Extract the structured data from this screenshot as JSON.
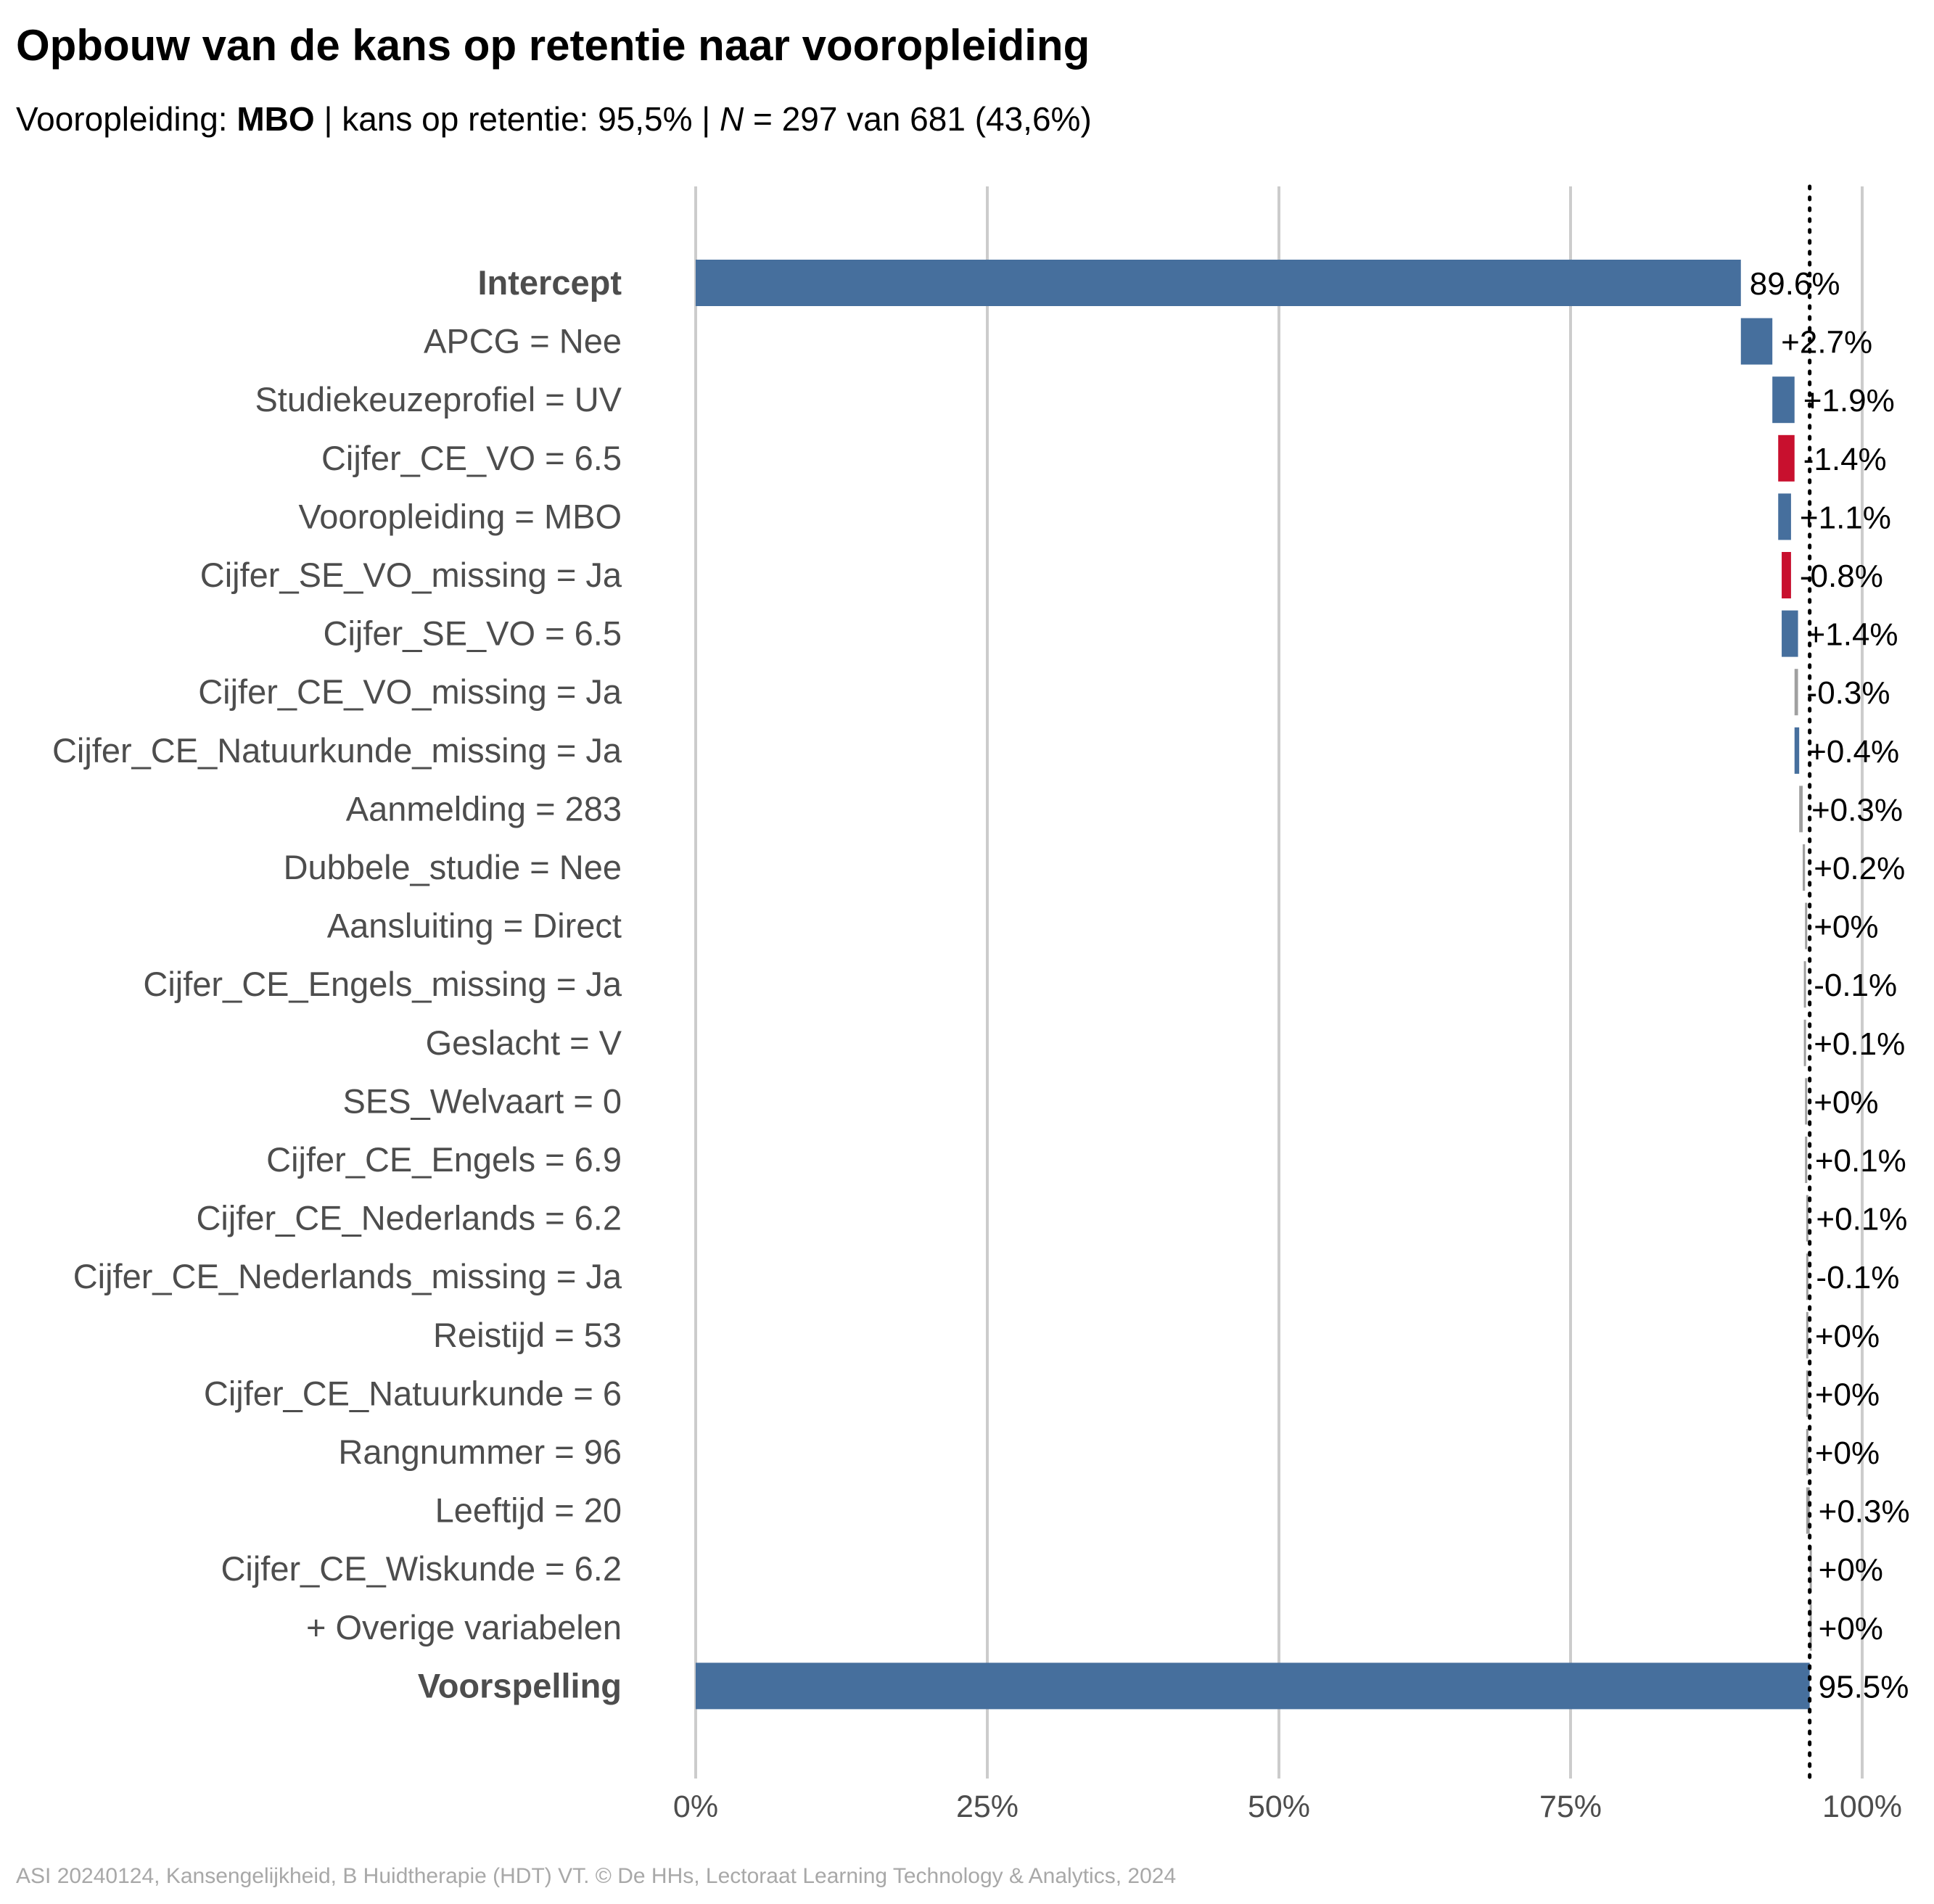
{
  "title": "Opbouw van de kans op retentie naar vooropleiding",
  "subtitle": {
    "prefix": "Vooropleiding: ",
    "group": "MBO",
    "middle": " | kans op retentie: 95,5% | ",
    "n_symbol": "N",
    "suffix": " = 297 van 681 (43,6%)"
  },
  "caption": "ASI 20240124, Kansengelijkheid, B Huidtherapie (HDT) VT. © De HHs, Lectoraat Learning Technology & Analytics, 2024",
  "colors": {
    "positive": "#466f9d",
    "negative": "#c8102e",
    "neutral": "#a0a0a0",
    "grid": "#cccccc"
  },
  "chart_data": {
    "type": "bar",
    "subtype": "waterfall",
    "orientation": "horizontal",
    "xlim": [
      0,
      100
    ],
    "x_ticks": [
      "0%",
      "25%",
      "50%",
      "75%",
      "100%"
    ],
    "x_tick_values": [
      0,
      25,
      50,
      75,
      100
    ],
    "prediction_line": 95.5,
    "categories": [
      "Intercept",
      "APCG = Nee",
      "Studiekeuzeprofiel = UV",
      "Cijfer_CE_VO = 6.5",
      "Vooropleiding = MBO",
      "Cijfer_SE_VO_missing = Ja",
      "Cijfer_SE_VO = 6.5",
      "Cijfer_CE_VO_missing = Ja",
      "Cijfer_CE_Natuurkunde_missing = Ja",
      "Aanmelding = 283",
      "Dubbele_studie = Nee",
      "Aansluiting = Direct",
      "Cijfer_CE_Engels_missing = Ja",
      "Geslacht = V",
      "SES_Welvaart = 0",
      "Cijfer_CE_Engels = 6.9",
      "Cijfer_CE_Nederlands = 6.2",
      "Cijfer_CE_Nederlands_missing = Ja",
      "Reistijd = 53",
      "Cijfer_CE_Natuurkunde = 6",
      "Rangnummer = 96",
      "Leeftijd = 20",
      "Cijfer_CE_Wiskunde = 6.2",
      "+ Overige variabelen",
      "Voorspelling"
    ],
    "bold_categories": [
      "Intercept",
      "Voorspelling"
    ],
    "values": [
      89.6,
      2.7,
      1.9,
      -1.4,
      1.1,
      -0.8,
      1.4,
      -0.3,
      0.4,
      0.3,
      0.2,
      0,
      -0.1,
      0.1,
      0,
      0.1,
      0.1,
      -0.1,
      0,
      0,
      0,
      0.3,
      0,
      0,
      95.5
    ],
    "labels": [
      "89.6%",
      "+2.7%",
      "+1.9%",
      "-1.4%",
      "+1.1%",
      "-0.8%",
      "+1.4%",
      "-0.3%",
      "+0.4%",
      "+0.3%",
      "+0.2%",
      "+0%",
      "-0.1%",
      "+0.1%",
      "+0%",
      "+0.1%",
      "+0.1%",
      "-0.1%",
      "+0%",
      "+0%",
      "+0%",
      "+0.3%",
      "+0%",
      "+0%",
      "95.5%"
    ]
  }
}
